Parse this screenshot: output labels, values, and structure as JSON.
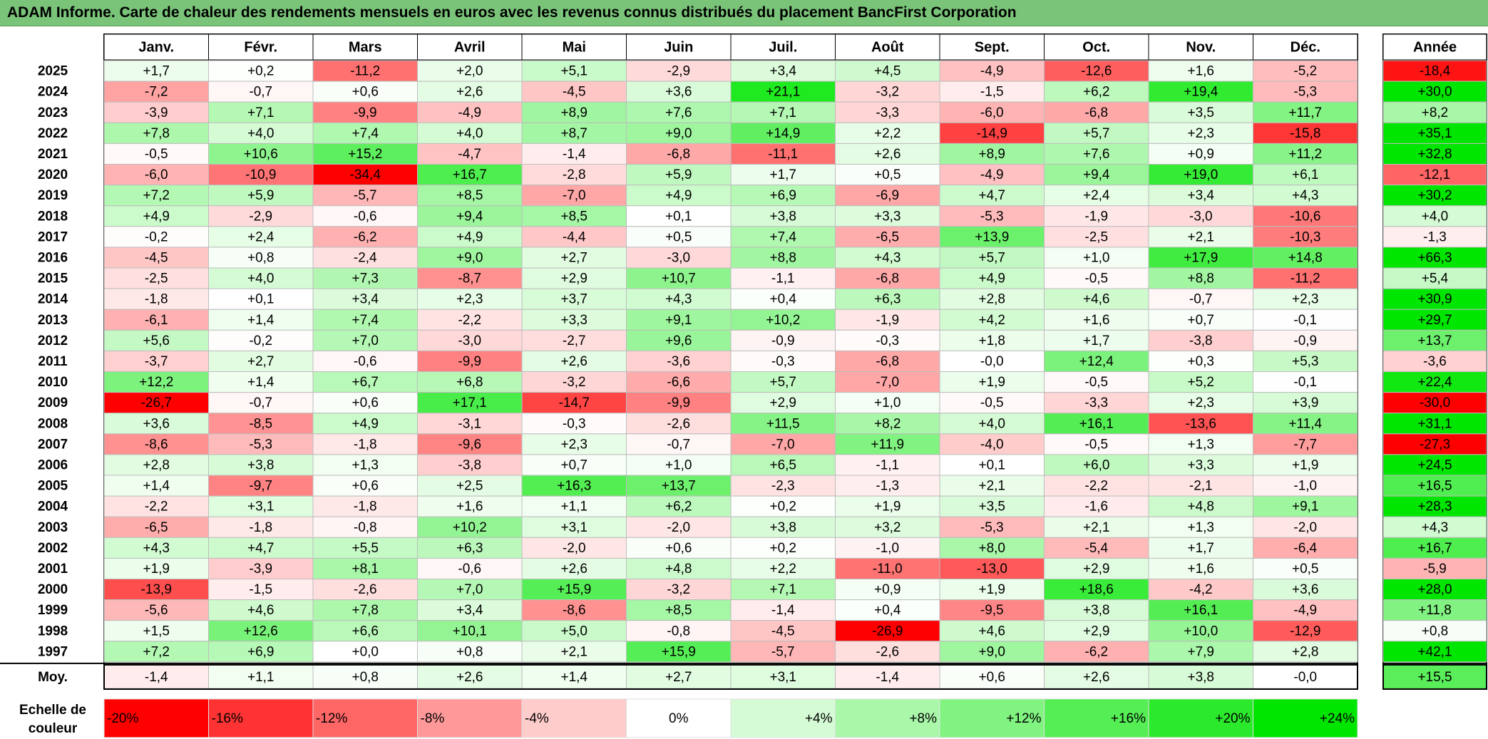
{
  "title": "ADAM Informe. Carte de chaleur des rendements mensuels en euros avec les revenus connus distribués du placement BancFirst Corporation",
  "chart_data": {
    "type": "heatmap",
    "months": [
      "Janv.",
      "Févr.",
      "Mars",
      "Avril",
      "Mai",
      "Juin",
      "Juil.",
      "Août",
      "Sept.",
      "Oct.",
      "Nov.",
      "Déc."
    ],
    "year_header": "Année",
    "rows": [
      {
        "year": "2025",
        "values": [
          "+1,7",
          "+0,2",
          "-11,2",
          "+2,0",
          "+5,1",
          "-2,9",
          "+3,4",
          "+4,5",
          "-4,9",
          "-12,6",
          "+1,6",
          "-5,2"
        ],
        "annual": "-18,4"
      },
      {
        "year": "2024",
        "values": [
          "-7,2",
          "-0,7",
          "+0,6",
          "+2,6",
          "-4,5",
          "+3,6",
          "+21,1",
          "-3,2",
          "-1,5",
          "+6,2",
          "+19,4",
          "-5,3"
        ],
        "annual": "+30,0"
      },
      {
        "year": "2023",
        "values": [
          "-3,9",
          "+7,1",
          "-9,9",
          "-4,9",
          "+8,9",
          "+7,6",
          "+7,1",
          "-3,3",
          "-6,0",
          "-6,8",
          "+3,5",
          "+11,7"
        ],
        "annual": "+8,2"
      },
      {
        "year": "2022",
        "values": [
          "+7,8",
          "+4,0",
          "+7,4",
          "+4,0",
          "+8,7",
          "+9,0",
          "+14,9",
          "+2,2",
          "-14,9",
          "+5,7",
          "+2,3",
          "-15,8"
        ],
        "annual": "+35,1"
      },
      {
        "year": "2021",
        "values": [
          "-0,5",
          "+10,6",
          "+15,2",
          "-4,7",
          "-1,4",
          "-6,8",
          "-11,1",
          "+2,6",
          "+8,9",
          "+7,6",
          "+0,9",
          "+11,2"
        ],
        "annual": "+32,8"
      },
      {
        "year": "2020",
        "values": [
          "-6,0",
          "-10,9",
          "-34,4",
          "+16,7",
          "-2,8",
          "+5,9",
          "+1,7",
          "+0,5",
          "-4,9",
          "+9,4",
          "+19,0",
          "+6,1"
        ],
        "annual": "-12,1"
      },
      {
        "year": "2019",
        "values": [
          "+7,2",
          "+5,9",
          "-5,7",
          "+8,5",
          "-7,0",
          "+4,9",
          "+6,9",
          "-6,9",
          "+4,7",
          "+2,4",
          "+3,4",
          "+4,3"
        ],
        "annual": "+30,2"
      },
      {
        "year": "2018",
        "values": [
          "+4,9",
          "-2,9",
          "-0,6",
          "+9,4",
          "+8,5",
          "+0,1",
          "+3,8",
          "+3,3",
          "-5,3",
          "-1,9",
          "-3,0",
          "-10,6"
        ],
        "annual": "+4,0"
      },
      {
        "year": "2017",
        "values": [
          "-0,2",
          "+2,4",
          "-6,2",
          "+4,9",
          "-4,4",
          "+0,5",
          "+7,4",
          "-6,5",
          "+13,9",
          "-2,5",
          "+2,1",
          "-10,3"
        ],
        "annual": "-1,3"
      },
      {
        "year": "2016",
        "values": [
          "-4,5",
          "+0,8",
          "-2,4",
          "+9,0",
          "+2,7",
          "-3,0",
          "+8,8",
          "+4,3",
          "+5,7",
          "+1,0",
          "+17,9",
          "+14,8"
        ],
        "annual": "+66,3"
      },
      {
        "year": "2015",
        "values": [
          "-2,5",
          "+4,0",
          "+7,3",
          "-8,7",
          "+2,9",
          "+10,7",
          "-1,1",
          "-6,8",
          "+4,9",
          "-0,5",
          "+8,8",
          "-11,2"
        ],
        "annual": "+5,4"
      },
      {
        "year": "2014",
        "values": [
          "-1,8",
          "+0,1",
          "+3,4",
          "+2,3",
          "+3,7",
          "+4,3",
          "+0,4",
          "+6,3",
          "+2,8",
          "+4,6",
          "-0,7",
          "+2,3"
        ],
        "annual": "+30,9"
      },
      {
        "year": "2013",
        "values": [
          "-6,1",
          "+1,4",
          "+7,4",
          "-2,2",
          "+3,3",
          "+9,1",
          "+10,2",
          "-1,9",
          "+4,2",
          "+1,6",
          "+0,7",
          "-0,1"
        ],
        "annual": "+29,7"
      },
      {
        "year": "2012",
        "values": [
          "+5,6",
          "-0,2",
          "+7,0",
          "-3,0",
          "-2,7",
          "+9,6",
          "-0,9",
          "-0,3",
          "+1,8",
          "+1,7",
          "-3,8",
          "-0,9"
        ],
        "annual": "+13,7"
      },
      {
        "year": "2011",
        "values": [
          "-3,7",
          "+2,7",
          "-0,6",
          "-9,9",
          "+2,6",
          "-3,6",
          "-0,3",
          "-6,8",
          "-0,0",
          "+12,4",
          "+0,3",
          "+5,3"
        ],
        "annual": "-3,6"
      },
      {
        "year": "2010",
        "values": [
          "+12,2",
          "+1,4",
          "+6,7",
          "+6,8",
          "-3,2",
          "-6,6",
          "+5,7",
          "-7,0",
          "+1,9",
          "-0,5",
          "+5,2",
          "-0,1"
        ],
        "annual": "+22,4"
      },
      {
        "year": "2009",
        "values": [
          "-26,7",
          "-0,7",
          "+0,6",
          "+17,1",
          "-14,7",
          "-9,9",
          "+2,9",
          "+1,0",
          "-0,5",
          "-3,3",
          "+2,3",
          "+3,9"
        ],
        "annual": "-30,0"
      },
      {
        "year": "2008",
        "values": [
          "+3,6",
          "-8,5",
          "+4,9",
          "-3,1",
          "-0,3",
          "-2,6",
          "+11,5",
          "+8,2",
          "+4,0",
          "+16,1",
          "-13,6",
          "+11,4"
        ],
        "annual": "+31,1"
      },
      {
        "year": "2007",
        "values": [
          "-8,6",
          "-5,3",
          "-1,8",
          "-9,6",
          "+2,3",
          "-0,7",
          "-7,0",
          "+11,9",
          "-4,0",
          "-0,5",
          "+1,3",
          "-7,7"
        ],
        "annual": "-27,3"
      },
      {
        "year": "2006",
        "values": [
          "+2,8",
          "+3,8",
          "+1,3",
          "-3,8",
          "+0,7",
          "+1,0",
          "+6,5",
          "-1,1",
          "+0,1",
          "+6,0",
          "+3,3",
          "+1,9"
        ],
        "annual": "+24,5"
      },
      {
        "year": "2005",
        "values": [
          "+1,4",
          "-9,7",
          "+0,6",
          "+2,5",
          "+16,3",
          "+13,7",
          "-2,3",
          "-1,3",
          "+2,1",
          "-2,2",
          "-2,1",
          "-1,0"
        ],
        "annual": "+16,5"
      },
      {
        "year": "2004",
        "values": [
          "-2,2",
          "+3,1",
          "-1,8",
          "+1,6",
          "+1,1",
          "+6,2",
          "+0,2",
          "+1,9",
          "+3,5",
          "-1,6",
          "+4,8",
          "+9,1"
        ],
        "annual": "+28,3"
      },
      {
        "year": "2003",
        "values": [
          "-6,5",
          "-1,8",
          "-0,8",
          "+10,2",
          "+3,1",
          "-2,0",
          "+3,8",
          "+3,2",
          "-5,3",
          "+2,1",
          "+1,3",
          "-2,0"
        ],
        "annual": "+4,3"
      },
      {
        "year": "2002",
        "values": [
          "+4,3",
          "+4,7",
          "+5,5",
          "+6,3",
          "-2,0",
          "+0,6",
          "+0,2",
          "-1,0",
          "+8,0",
          "-5,4",
          "+1,7",
          "-6,4"
        ],
        "annual": "+16,7"
      },
      {
        "year": "2001",
        "values": [
          "+1,9",
          "-3,9",
          "+8,1",
          "-0,6",
          "+2,6",
          "+4,8",
          "+2,2",
          "-11,0",
          "-13,0",
          "+2,9",
          "+1,6",
          "+0,5"
        ],
        "annual": "-5,9"
      },
      {
        "year": "2000",
        "values": [
          "-13,9",
          "-1,5",
          "-2,6",
          "+7,0",
          "+15,9",
          "-3,2",
          "+7,1",
          "+0,9",
          "+1,9",
          "+18,6",
          "-4,2",
          "+3,6"
        ],
        "annual": "+28,0"
      },
      {
        "year": "1999",
        "values": [
          "-5,6",
          "+4,6",
          "+7,8",
          "+3,4",
          "-8,6",
          "+8,5",
          "-1,4",
          "+0,4",
          "-9,5",
          "+3,8",
          "+16,1",
          "-4,9"
        ],
        "annual": "+11,8"
      },
      {
        "year": "1998",
        "values": [
          "+1,5",
          "+12,6",
          "+6,6",
          "+10,1",
          "+5,0",
          "-0,8",
          "-4,5",
          "-26,9",
          "+4,6",
          "+2,9",
          "+10,0",
          "-12,9"
        ],
        "annual": "+0,8"
      },
      {
        "year": "1997",
        "values": [
          "+7,2",
          "+6,9",
          "+0,0",
          "+0,8",
          "+2,1",
          "+15,9",
          "-5,7",
          "-2,6",
          "+9,0",
          "-6,2",
          "+7,9",
          "+2,8"
        ],
        "annual": "+42,1"
      }
    ],
    "average": {
      "label": "Moy.",
      "values": [
        "-1,4",
        "+1,1",
        "+0,8",
        "+2,6",
        "+1,4",
        "+2,7",
        "+3,1",
        "-1,4",
        "+0,6",
        "+2,6",
        "+3,8",
        "-0,0"
      ],
      "annual": "+15,5"
    },
    "color_scale": {
      "label": "Echelle de couleur",
      "label_lines": [
        "Echelle de",
        "couleur"
      ],
      "steps": [
        "-20%",
        "-16%",
        "-12%",
        "-8%",
        "-4%",
        "0%",
        "+4%",
        "+8%",
        "+12%",
        "+16%",
        "+20%",
        "+24%"
      ],
      "step_values": [
        -20,
        -16,
        -12,
        -8,
        -4,
        0,
        4,
        8,
        12,
        16,
        20,
        24
      ]
    },
    "colors": {
      "negative_max": "#ff0000",
      "neutral": "#ffffff",
      "positive_max": "#00e600",
      "title_bar": "#7ac47a"
    }
  }
}
